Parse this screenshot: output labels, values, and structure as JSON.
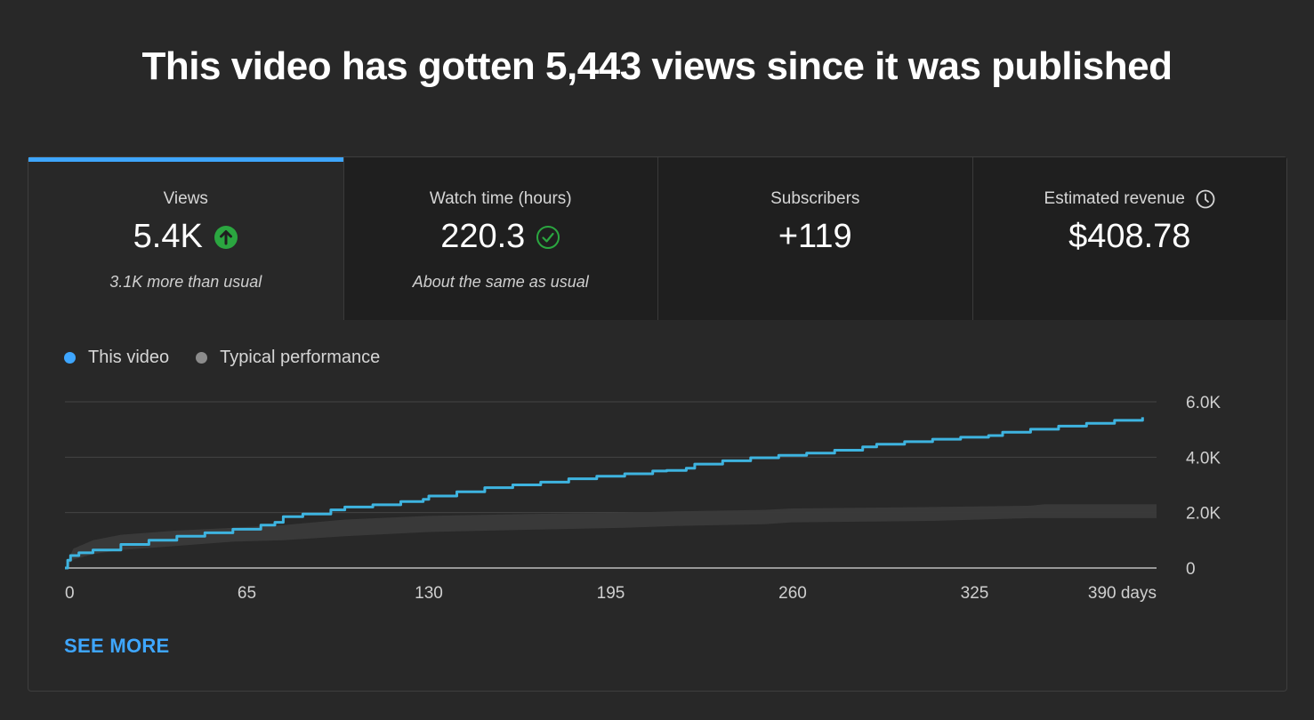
{
  "headline": "This video has gotten 5,443 views since it was published",
  "tabs": [
    {
      "label": "Views",
      "value": "5.4K",
      "note": "3.1K more than usual",
      "badge": "arrow-up-icon",
      "badge_color": "#2ba640"
    },
    {
      "label": "Watch time (hours)",
      "value": "220.3",
      "note": "About the same as usual",
      "badge": "check-circle-icon",
      "badge_color": "#2ba640"
    },
    {
      "label": "Subscribers",
      "value": "+119",
      "note": ""
    },
    {
      "label": "Estimated revenue",
      "value": "$408.78",
      "note": "",
      "label_icon": "clock-icon"
    }
  ],
  "legend": [
    {
      "label": "This video",
      "color": "#3ea6ff"
    },
    {
      "label": "Typical performance",
      "color": "#8c8c8c"
    }
  ],
  "see_more": "SEE MORE",
  "colors": {
    "accent": "#3ea6ff",
    "line": "#3eb4e0",
    "band": "#3a3a3a",
    "positive": "#2ba640"
  },
  "chart_data": {
    "type": "line",
    "x_unit_label": "days",
    "xticks": [
      0,
      65,
      130,
      195,
      260,
      325,
      390
    ],
    "xtick_labels": [
      "0",
      "65",
      "130",
      "195",
      "260",
      "325",
      "390 days"
    ],
    "yticks": [
      0,
      2000,
      4000,
      6000
    ],
    "ytick_labels": [
      "0",
      "2.0K",
      "4.0K",
      "6.0K"
    ],
    "xlim": [
      0,
      390
    ],
    "ylim": [
      0,
      6000
    ],
    "series": [
      {
        "name": "This video",
        "x": [
          0,
          1,
          2,
          5,
          10,
          20,
          30,
          40,
          50,
          60,
          70,
          75,
          78,
          85,
          95,
          100,
          110,
          120,
          128,
          130,
          140,
          150,
          160,
          170,
          180,
          190,
          200,
          210,
          215,
          222,
          225,
          235,
          245,
          255,
          265,
          275,
          285,
          290,
          300,
          310,
          320,
          330,
          335,
          345,
          355,
          365,
          375,
          385
        ],
        "y": [
          0,
          280,
          450,
          550,
          650,
          850,
          1000,
          1150,
          1270,
          1400,
          1550,
          1650,
          1850,
          1950,
          2100,
          2200,
          2280,
          2400,
          2480,
          2600,
          2750,
          2900,
          3000,
          3100,
          3220,
          3310,
          3400,
          3500,
          3520,
          3600,
          3750,
          3870,
          3980,
          4070,
          4150,
          4250,
          4370,
          4470,
          4560,
          4650,
          4720,
          4780,
          4900,
          5010,
          5120,
          5220,
          5330,
          5443
        ]
      },
      {
        "name": "Typical performance",
        "band": true,
        "x": [
          0,
          3,
          10,
          20,
          40,
          60,
          78,
          100,
          130,
          165,
          200,
          220,
          250,
          260,
          310,
          345,
          350,
          390
        ],
        "low": [
          0,
          300,
          500,
          650,
          800,
          950,
          1000,
          1150,
          1300,
          1380,
          1450,
          1520,
          1580,
          1650,
          1700,
          1800,
          1800,
          1800
        ],
        "high": [
          0,
          700,
          1000,
          1200,
          1350,
          1450,
          1550,
          1750,
          1880,
          1950,
          2000,
          2050,
          2100,
          2150,
          2200,
          2250,
          2300,
          2300
        ]
      }
    ]
  }
}
